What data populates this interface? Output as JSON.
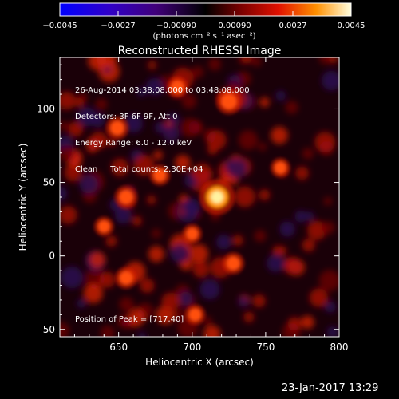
{
  "colorbar": {
    "ticks": [
      "−0.0045",
      "−0.0027",
      "−0.00090",
      "0.00090",
      "0.0027",
      "0.0045"
    ],
    "unit_label": "(photons cm⁻² s⁻¹ asec⁻²)",
    "range": [
      -0.0045,
      0.0045
    ]
  },
  "info": {
    "line1": "26-Aug-2014 03:38:08.000 to 03:48:08.000",
    "line2": "Detectors: 3F 6F 9F, Att 0",
    "line3": "Energy Range: 6.0 - 12.0 keV",
    "line4": "Clean     Total counts: 2.30E+04"
  },
  "peak_label": "Position of Peak = [717,40]",
  "timestamp": "23-Jan-2017 13:29",
  "chart_data": {
    "type": "heatmap",
    "title": "Reconstructed RHESSI Image",
    "xlabel": "Heliocentric X (arcsec)",
    "ylabel": "Heliocentric Y (arcsec)",
    "xlim": [
      610,
      800
    ],
    "ylim": [
      -55,
      135
    ],
    "xticks": [
      650,
      700,
      750,
      800
    ],
    "yticks": [
      -50,
      0,
      50,
      100
    ],
    "peak": [
      717,
      40
    ],
    "sources": [
      {
        "x": 717,
        "y": 40,
        "intensity": 1.0
      },
      {
        "x": 725,
        "y": 105,
        "intensity": 0.55
      },
      {
        "x": 649,
        "y": 87,
        "intensity": 0.45
      },
      {
        "x": 655,
        "y": 40,
        "intensity": 0.45
      },
      {
        "x": 655,
        "y": -15,
        "intensity": 0.4
      },
      {
        "x": 728,
        "y": -5,
        "intensity": 0.4
      },
      {
        "x": 702,
        "y": -40,
        "intensity": 0.35
      },
      {
        "x": 678,
        "y": 55,
        "intensity": 0.35
      },
      {
        "x": 690,
        "y": 115,
        "intensity": 0.35
      },
      {
        "x": 760,
        "y": 60,
        "intensity": 0.3
      },
      {
        "x": 640,
        "y": 20,
        "intensity": 0.3
      },
      {
        "x": 700,
        "y": 15,
        "intensity": 0.3
      }
    ]
  }
}
